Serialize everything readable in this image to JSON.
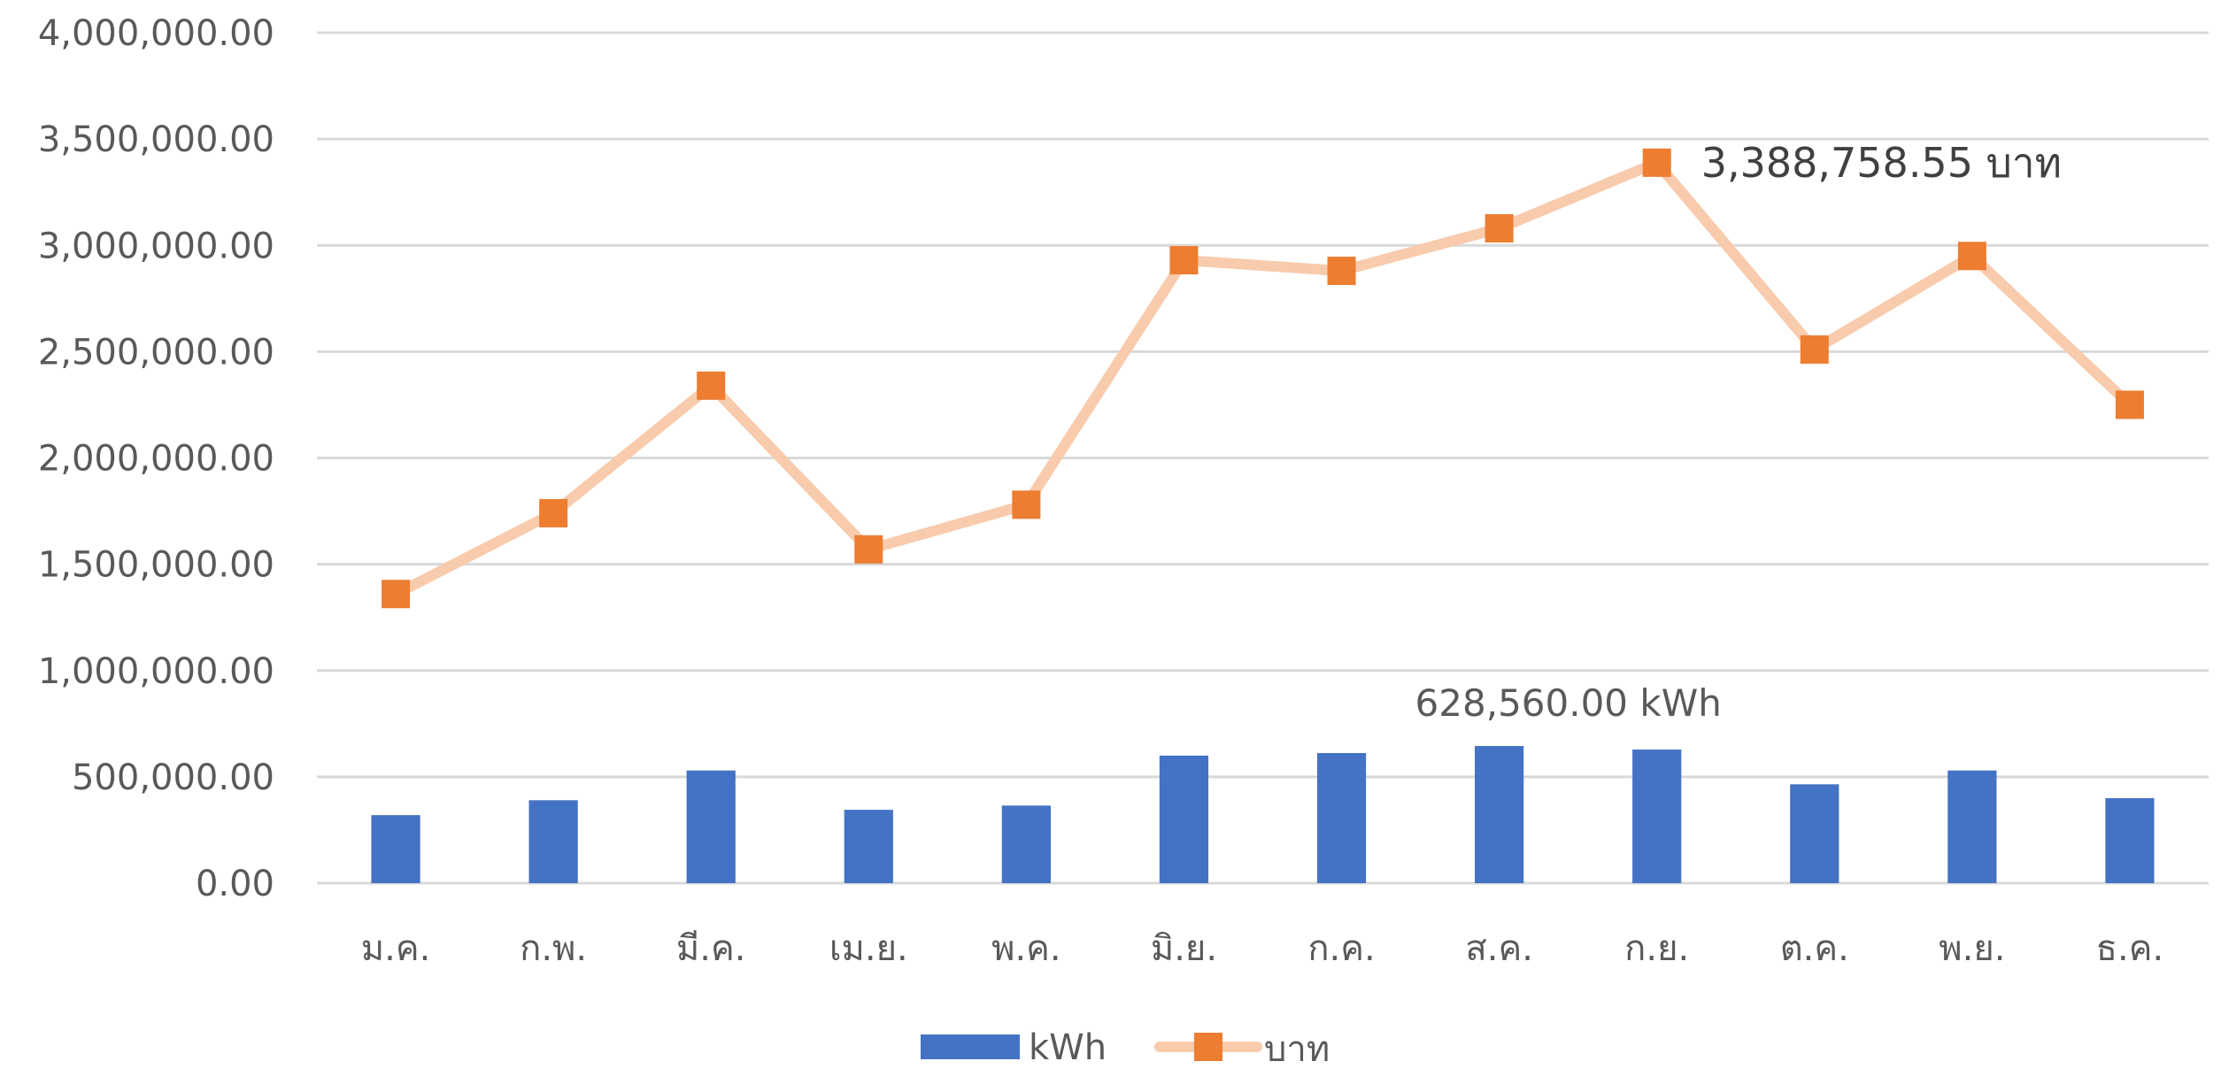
{
  "chart_data": {
    "type": "bar+line",
    "categories": [
      "ม.ค.",
      "ก.พ.",
      "มี.ค.",
      "เม.ย.",
      "พ.ค.",
      "มิ.ย.",
      "ก.ค.",
      "ส.ค.",
      "ก.ย.",
      "ต.ค.",
      "พ.ย.",
      "ธ.ค."
    ],
    "series": [
      {
        "name": "kWh",
        "type": "bar",
        "color": "#4472C4",
        "values": [
          320000,
          390000,
          530000,
          345000,
          365000,
          600000,
          612000,
          645000,
          628560,
          465000,
          530000,
          400000
        ]
      },
      {
        "name": "บาท",
        "type": "line",
        "line_color": "#F8CBAD",
        "marker_color": "#ED7D31",
        "marker": "square",
        "values": [
          1360000,
          1740000,
          2340000,
          1570000,
          1780000,
          2930000,
          2880000,
          3080000,
          3388758.55,
          2510000,
          2950000,
          2250000
        ]
      }
    ],
    "y_ticks": [
      "0.00",
      "500,000.00",
      "1,000,000.00",
      "1,500,000.00",
      "2,000,000.00",
      "2,500,000.00",
      "3,000,000.00",
      "3,500,000.00",
      "4,000,000.00"
    ],
    "ylim": [
      0,
      4000000
    ],
    "grid": true,
    "legend_position": "bottom",
    "annotations": [
      {
        "series": "บาท",
        "category": "ก.ย.",
        "text": "3,388,758.55 บาท"
      },
      {
        "series": "kWh",
        "category": "ก.ย.",
        "text": "628,560.00 kWh"
      }
    ],
    "title": "",
    "xlabel": "",
    "ylabel": ""
  }
}
